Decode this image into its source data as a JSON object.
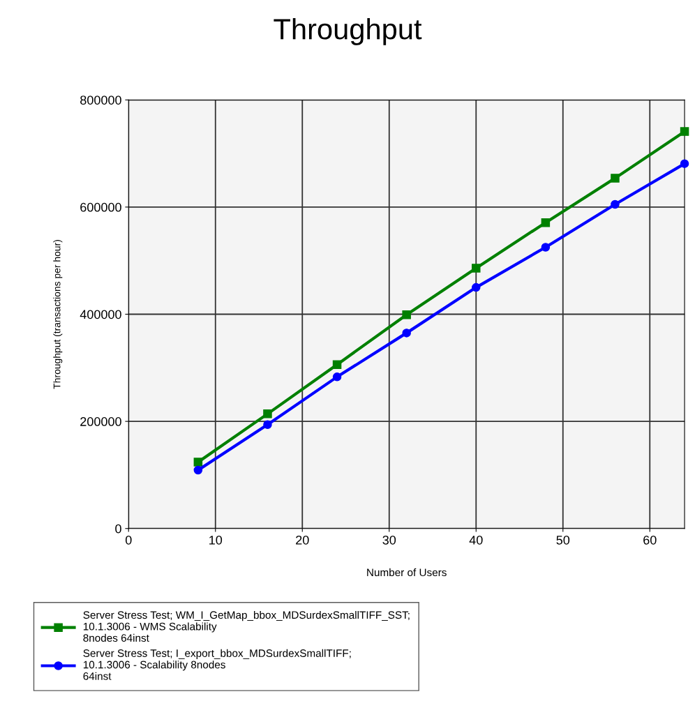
{
  "chart_data": {
    "type": "line",
    "title": "Throughput",
    "xlabel": "Number of Users",
    "ylabel": "Throughput (transactions per hour)",
    "x": [
      8,
      16,
      24,
      32,
      40,
      48,
      56,
      64
    ],
    "series": [
      {
        "name": "Server Stress Test; WM_I_GetMap_bbox_MDSurdexSmallTIFF_SST;\n10.1.3006 - WMS Scalability\n8nodes 64inst",
        "color": "#008000",
        "marker": "square",
        "values": [
          124000,
          214000,
          306000,
          399000,
          486000,
          571000,
          654000,
          741000
        ]
      },
      {
        "name": "Server Stress Test; I_export_bbox_MDSurdexSmallTIFF;\n10.1.3006 - Scalability 8nodes\n64inst",
        "color": "#0000ff",
        "marker": "circle",
        "values": [
          109000,
          194000,
          283000,
          365000,
          450000,
          525000,
          605000,
          681000
        ]
      }
    ],
    "xlim": [
      0,
      64
    ],
    "xticks": [
      0,
      10,
      20,
      30,
      40,
      50,
      60
    ],
    "ylim": [
      0,
      800000
    ],
    "yticks": [
      0,
      200000,
      400000,
      600000,
      800000
    ],
    "grid": true,
    "legend": "bottom",
    "line_style": "solid"
  }
}
